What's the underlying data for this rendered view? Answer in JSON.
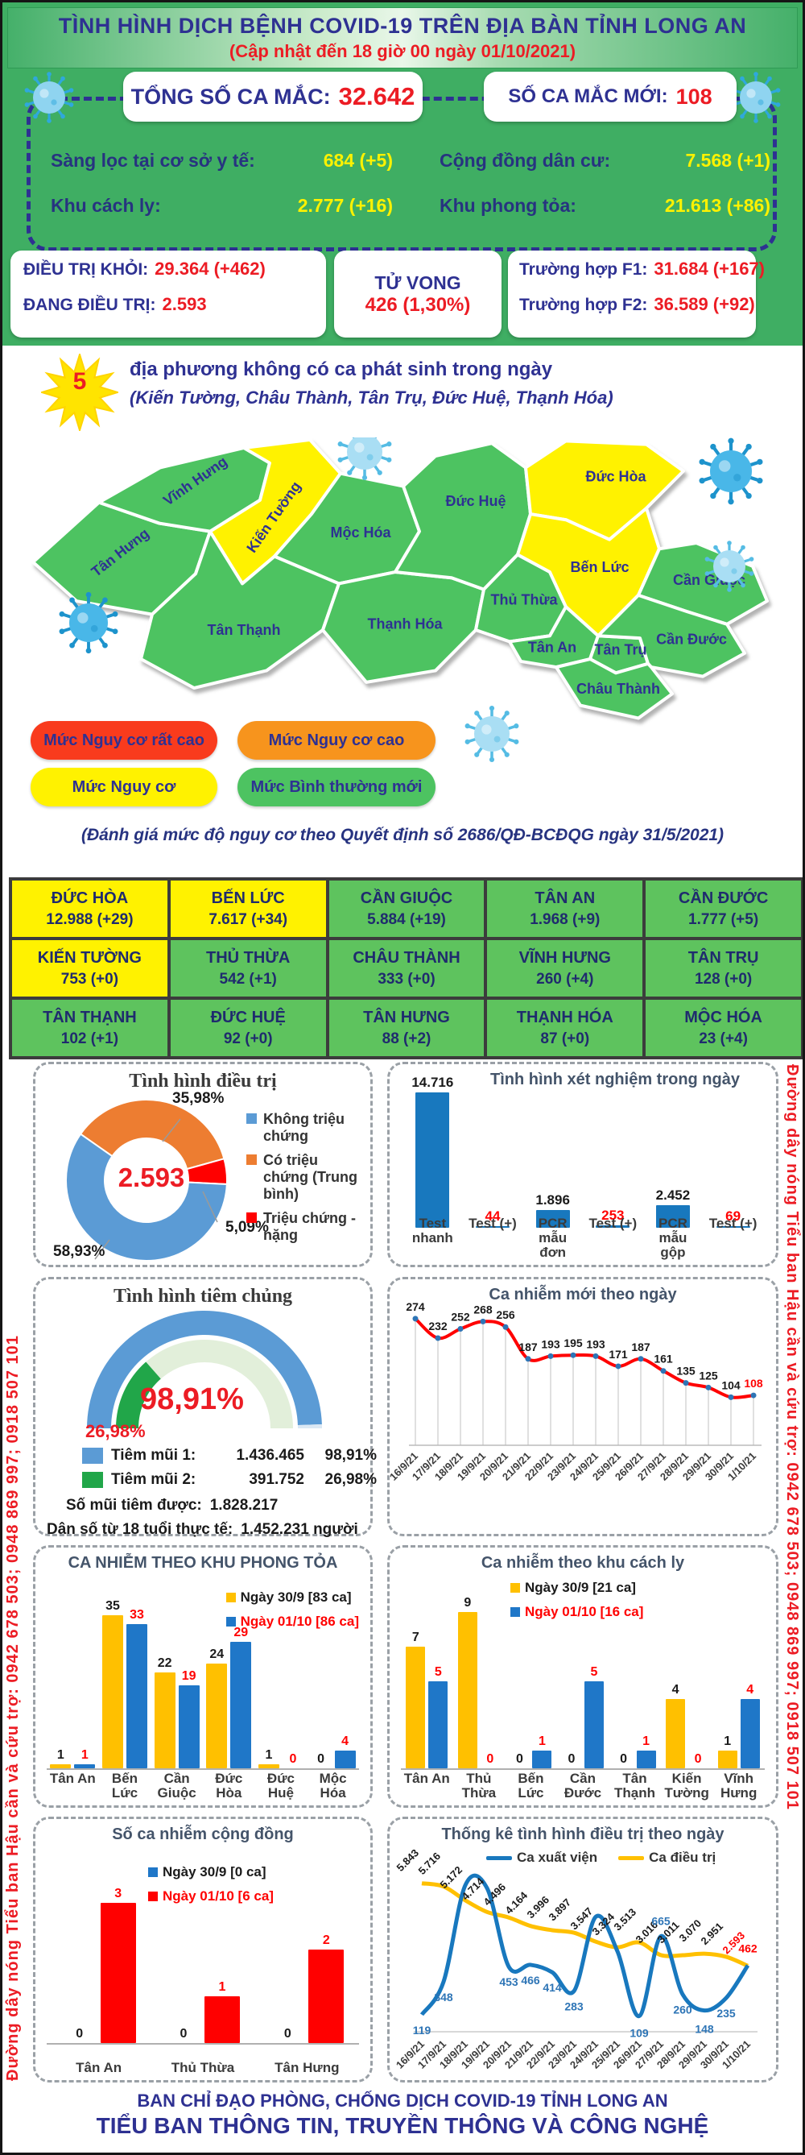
{
  "header": {
    "title": "TÌNH HÌNH DỊCH BỆNH COVID-19 TRÊN ĐỊA BÀN TỈNH LONG AN",
    "subtitle": "(Cập nhật đến 18 giờ 00 ngày 01/10/2021)"
  },
  "summary": {
    "total_label": "TỔNG SỐ CA MẮC:",
    "total_value": "32.642",
    "new_label": "SỐ CA MẮC MỚI:",
    "new_value": "108",
    "rows": [
      {
        "label": "Sàng lọc tại cơ sở y tế:",
        "value": "684 (+5)"
      },
      {
        "label": "Cộng đồng dân cư:",
        "value": "7.568 (+1)"
      },
      {
        "label": "Khu cách ly:",
        "value": "2.777 (+16)"
      },
      {
        "label": "Khu phong tỏa:",
        "value": "21.613 (+86)"
      }
    ]
  },
  "status_cards": {
    "recovered_label": "ĐIỀU TRỊ KHỎI:",
    "recovered_value": "29.364 (+462)",
    "treating_label": "ĐANG ĐIỀU TRỊ:",
    "treating_value": "2.593",
    "death_label": "TỬ VONG",
    "death_value": "426 (1,30%)",
    "f1_label": "Trường hợp F1:",
    "f1_value": "31.684 (+167)",
    "f2_label": "Trường hợp F2:",
    "f2_value": "36.589 (+92)"
  },
  "alert": {
    "count": "5",
    "line1": "địa phương không có ca phát sinh trong ngày",
    "line2": "(Kiến Tường, Châu Thành, Tân Trụ, Đức Huệ, Thạnh Hóa)"
  },
  "map": {
    "legend": [
      {
        "label": "Mức Nguy cơ rất cao",
        "color": "#f93b1d"
      },
      {
        "label": "Mức Nguy cơ cao",
        "color": "#f7941d"
      },
      {
        "label": "Mức Nguy cơ",
        "color": "#fff200"
      },
      {
        "label": "Mức Bình thường mới",
        "color": "#4dc361"
      }
    ],
    "districts": [
      {
        "name": "Tân Hưng",
        "level": "normal"
      },
      {
        "name": "Vĩnh Hưng",
        "level": "normal"
      },
      {
        "name": "Kiến Tường",
        "level": "risk"
      },
      {
        "name": "Mộc Hóa",
        "level": "normal"
      },
      {
        "name": "Tân Thạnh",
        "level": "normal"
      },
      {
        "name": "Thạnh Hóa",
        "level": "normal"
      },
      {
        "name": "Đức Huệ",
        "level": "normal"
      },
      {
        "name": "Đức Hòa",
        "level": "risk"
      },
      {
        "name": "Thủ Thừa",
        "level": "normal"
      },
      {
        "name": "Bến Lức",
        "level": "risk"
      },
      {
        "name": "Tân An",
        "level": "normal"
      },
      {
        "name": "Tân Trụ",
        "level": "normal"
      },
      {
        "name": "Cần Giuộc",
        "level": "normal"
      },
      {
        "name": "Cần Đước",
        "level": "normal"
      },
      {
        "name": "Châu Thành",
        "level": "normal"
      }
    ],
    "note": "(Đánh giá mức độ nguy cơ theo Quyết định số 2686/QĐ-BCĐQG ngày 31/5/2021)"
  },
  "district_table": {
    "rows": [
      [
        {
          "name": "ĐỨC HÒA",
          "value": "12.988 (+29)",
          "level": "risk"
        },
        {
          "name": "BẾN LỨC",
          "value": "7.617 (+34)",
          "level": "risk"
        },
        {
          "name": "CẦN GIUỘC",
          "value": "5.884 (+19)",
          "level": "normal"
        },
        {
          "name": "TÂN AN",
          "value": "1.968 (+9)",
          "level": "normal"
        },
        {
          "name": "CẦN ĐƯỚC",
          "value": "1.777 (+5)",
          "level": "normal"
        }
      ],
      [
        {
          "name": "KIẾN TƯỜNG",
          "value": "753 (+0)",
          "level": "risk"
        },
        {
          "name": "THỦ THỪA",
          "value": "542 (+1)",
          "level": "normal"
        },
        {
          "name": "CHÂU THÀNH",
          "value": "333 (+0)",
          "level": "normal"
        },
        {
          "name": "VĨNH HƯNG",
          "value": "260 (+4)",
          "level": "normal"
        },
        {
          "name": "TÂN TRỤ",
          "value": "128 (+0)",
          "level": "normal"
        }
      ],
      [
        {
          "name": "TÂN THẠNH",
          "value": "102 (+1)",
          "level": "normal"
        },
        {
          "name": "ĐỨC HUỆ",
          "value": "92 (+0)",
          "level": "normal"
        },
        {
          "name": "TÂN HƯNG",
          "value": "88 (+2)",
          "level": "normal"
        },
        {
          "name": "THẠNH HÓA",
          "value": "87 (+0)",
          "level": "normal"
        },
        {
          "name": "MỘC HÓA",
          "value": "23 (+4)",
          "level": "normal"
        }
      ]
    ]
  },
  "hotline": "Đường dây nóng Tiểu ban Hậu cần và cứu trợ: 0942 678 503; 0948 869 997; 0918 507 101",
  "footer": {
    "line1": "BAN CHỈ ĐẠO PHÒNG, CHỐNG DỊCH COVID-19 TỈNH LONG AN",
    "line2": "TIỂU BAN THÔNG TIN, TRUYỀN THÔNG VÀ CÔNG NGHỆ"
  },
  "chart_data": [
    {
      "id": "treatment",
      "type": "pie",
      "title": "Tình hình điều trị",
      "center_label": "2.593",
      "slices": [
        {
          "label": "Không triệu chứng",
          "pct": 58.93,
          "display": "58,93%",
          "color": "#5b9bd5"
        },
        {
          "label": "Có triệu chứng (Trung bình)",
          "pct": 35.98,
          "display": "35,98%",
          "color": "#ed7d31"
        },
        {
          "label": "Triệu chứng - nặng",
          "pct": 5.09,
          "display": "5,09%",
          "color": "#ff0000"
        }
      ],
      "start_angle": -55,
      "draw_order": [
        1,
        2,
        0
      ],
      "legend_position": "right"
    },
    {
      "id": "testing",
      "type": "bar",
      "title": "Tình hình xét nghiệm trong ngày",
      "categories": [
        "Test nhanh",
        "Test (+)",
        "PCR mẫu đơn",
        "Test (+)",
        "PCR mẫu gộp",
        "Test (+)"
      ],
      "values": [
        14716,
        44,
        1896,
        253,
        2452,
        69
      ],
      "labels": [
        "14.716",
        "44",
        "1.896",
        "253",
        "2.452",
        "69"
      ],
      "positive_indexes": [
        1,
        3,
        5
      ],
      "bar_color": "#1878be",
      "label_color": "#1a1a1a",
      "positive_label_color": "#ff0000",
      "ylim": [
        0,
        14716
      ],
      "grid": false
    },
    {
      "id": "vaccination",
      "type": "pie",
      "style": "half-gauge",
      "title": "Tình hình tiêm chủng",
      "dose1_pct": 98.91,
      "dose1_display": "98,91%",
      "dose2_pct": 26.98,
      "dose2_display": "26,98%",
      "ring_colors": {
        "dose1": "#5b9bd5",
        "dose1_rest": "#dbe8f4",
        "dose2": "#21a649",
        "dose2_rest": "#e2efda"
      },
      "legend": [
        {
          "label": "Tiêm mũi 1:",
          "value": "1.436.465",
          "pct": "98,91%",
          "color": "#5b9bd5"
        },
        {
          "label": "Tiêm mũi 2:",
          "value": "391.752",
          "pct": "26,98%",
          "color": "#21a649"
        }
      ],
      "total_label": "Số mũi tiêm được:",
      "total_value": "1.828.217",
      "population_label": "Dân số từ 18 tuổi thực tế:",
      "population_value": "1.452.231 người"
    },
    {
      "id": "new_cases",
      "type": "line",
      "title": "Ca nhiễm mới theo ngày",
      "x": [
        "16/9/21",
        "17/9/21",
        "18/9/21",
        "19/9/21",
        "20/9/21",
        "21/9/21",
        "22/9/21",
        "23/9/21",
        "24/9/21",
        "25/9/21",
        "26/9/21",
        "27/9/21",
        "28/9/21",
        "29/9/21",
        "30/9/21",
        "1/10/21"
      ],
      "values": [
        274,
        232,
        252,
        268,
        256,
        187,
        193,
        195,
        193,
        171,
        187,
        161,
        135,
        125,
        104,
        108
      ],
      "line_color": "#ff0000",
      "marker_color": "#2e75b6",
      "label_color": "#1a1a1a",
      "last_label_color": "#ff0000",
      "ylim": [
        0,
        300
      ],
      "grid": false
    },
    {
      "id": "lockdown",
      "type": "bar",
      "title": "CA NHIỄM THEO KHU PHONG TỎA",
      "categories": [
        "Tân An",
        "Bến Lức",
        "Cần Giuộc",
        "Đức Hòa",
        "Đức Huệ",
        "Mộc Hóa"
      ],
      "series": [
        {
          "name": "Ngày 30/9 [83 ca]",
          "color": "#ffc000",
          "label_color": "#1a1a1a",
          "values": [
            1,
            35,
            22,
            24,
            1,
            0
          ]
        },
        {
          "name": "Ngày 01/10 [86 ca]",
          "color": "#1f77c8",
          "label_color": "#ff0000",
          "values": [
            1,
            33,
            19,
            29,
            0,
            4
          ]
        }
      ],
      "ylim": [
        0,
        35
      ],
      "legend_position": "right"
    },
    {
      "id": "quarantine",
      "type": "bar",
      "title": "Ca nhiễm theo khu cách ly",
      "categories": [
        "Tân An",
        "Thủ Thừa",
        "Bến Lức",
        "Cần Đước",
        "Tân Thạnh",
        "Kiến Tường",
        "Vĩnh Hưng"
      ],
      "series": [
        {
          "name": "Ngày 30/9 [21 ca]",
          "color": "#ffc000",
          "label_color": "#1a1a1a",
          "values": [
            7,
            9,
            0,
            0,
            0,
            4,
            1
          ]
        },
        {
          "name": "Ngày 01/10 [16 ca]",
          "color": "#1f77c8",
          "label_color": "#ff0000",
          "values": [
            5,
            0,
            1,
            5,
            1,
            0,
            4
          ]
        }
      ],
      "ylim": [
        0,
        9
      ],
      "legend_position": "top"
    },
    {
      "id": "community",
      "type": "bar",
      "title": "Số ca nhiễm cộng đồng",
      "categories": [
        "Tân An",
        "Thủ Thừa",
        "Tân Hưng"
      ],
      "series": [
        {
          "name": "Ngày 30/9 [0 ca]",
          "color": "#1f77c8",
          "label_color": "#1a1a1a",
          "values": [
            0,
            0,
            0
          ]
        },
        {
          "name": "Ngày 01/10 [6 ca]",
          "color": "#ff0000",
          "label_color": "#1a1a1a",
          "values": [
            3,
            1,
            2
          ]
        }
      ],
      "ylim": [
        0,
        3
      ],
      "legend_position": "top"
    },
    {
      "id": "treatment_daily",
      "type": "line",
      "title": "Thống kê tình hình điều trị theo ngày",
      "x": [
        "16/9/21",
        "17/9/21",
        "18/9/21",
        "19/9/21",
        "20/9/21",
        "21/9/21",
        "22/9/21",
        "23/9/21",
        "24/9/21",
        "25/9/21",
        "26/9/21",
        "27/9/21",
        "28/9/21",
        "29/9/21",
        "30/9/21",
        "1/10/21"
      ],
      "series": [
        {
          "name": "Ca xuất viện",
          "color": "#1878be",
          "values": [
            119,
            348,
            1020,
            1000,
            453,
            466,
            414,
            283,
            800,
            560,
            109,
            665,
            260,
            148,
            235,
            462
          ],
          "labels": [
            "119",
            "348",
            null,
            null,
            "453",
            "466",
            "414",
            "283",
            null,
            null,
            "109",
            "665",
            "260",
            "148",
            "235",
            "462"
          ],
          "label_color": "#2e75b6",
          "last_label_color": "#ff0000"
        },
        {
          "name": "Ca điều trị",
          "color": "#ffc000",
          "values": [
            5843,
            5716,
            5172,
            4714,
            4496,
            4164,
            3996,
            3897,
            3547,
            3324,
            3513,
            3016,
            3011,
            3070,
            2951,
            2593
          ],
          "labels": [
            "5.843",
            "5.716",
            "5.172",
            "4.714",
            "4.496",
            "4.164",
            "3.996",
            "3.897",
            "3.547",
            "3.324",
            "3.513",
            "3.016",
            "3.011",
            "3.070",
            "2.951",
            "2.593"
          ],
          "label_color": "#1a1a1a",
          "last_label_color": "#ff0000"
        }
      ],
      "grid": false
    }
  ]
}
